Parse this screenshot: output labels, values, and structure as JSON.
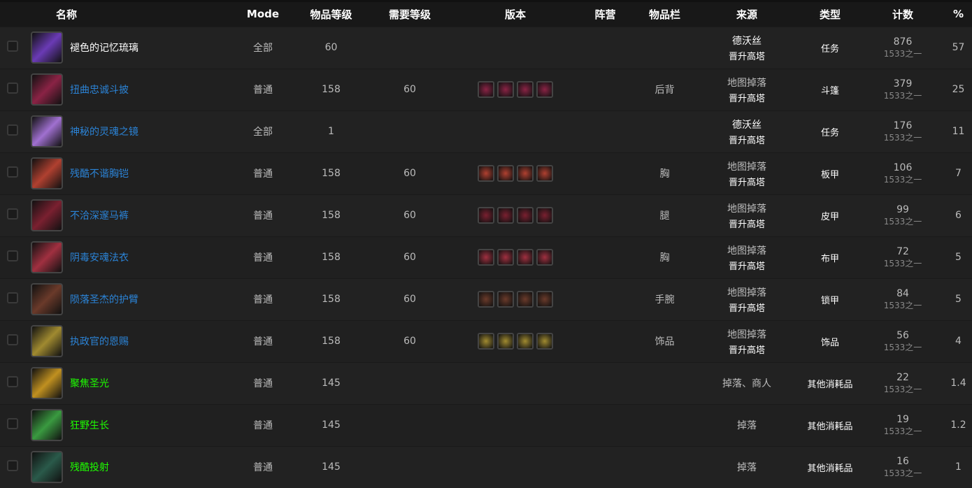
{
  "headers": [
    "名称",
    "Mode",
    "物品等级",
    "需要等级",
    "版本",
    "阵营",
    "物品栏",
    "来源",
    "类型",
    "计数",
    "%"
  ],
  "rows": [
    {
      "name": "褪色的记忆琉璃",
      "quality": "white",
      "icon": "purple-crystal-icon",
      "color": "#6a3bb5",
      "mode": "全部",
      "ilvl": "60",
      "req": "",
      "versions": 0,
      "slot": "",
      "src1": "德沃丝",
      "src1_bold": true,
      "src2": "晋升高塔",
      "type": "任务",
      "count": "876",
      "of": "1533之一",
      "pct": "57"
    },
    {
      "name": "扭曲忠诚斗披",
      "quality": "blue",
      "icon": "cloak-icon",
      "color": "#8a2345",
      "mode": "普通",
      "ilvl": "158",
      "req": "60",
      "versions": 4,
      "slot": "后背",
      "src1": "地图掉落",
      "src1_bold": false,
      "src2": "晋升高塔",
      "type": "斗篷",
      "count": "379",
      "of": "1533之一",
      "pct": "25"
    },
    {
      "name": "神秘的灵魂之镜",
      "quality": "blue",
      "icon": "soul-mirror-icon",
      "color": "#a070d0",
      "mode": "全部",
      "ilvl": "1",
      "req": "",
      "versions": 0,
      "slot": "",
      "src1": "德沃丝",
      "src1_bold": true,
      "src2": "晋升高塔",
      "type": "任务",
      "count": "176",
      "of": "1533之一",
      "pct": "11"
    },
    {
      "name": "残酷不谐胸铠",
      "quality": "blue",
      "icon": "plate-chest-icon",
      "color": "#b04030",
      "mode": "普通",
      "ilvl": "158",
      "req": "60",
      "versions": 4,
      "slot": "胸",
      "src1": "地图掉落",
      "src1_bold": false,
      "src2": "晋升高塔",
      "type": "板甲",
      "count": "106",
      "of": "1533之一",
      "pct": "7"
    },
    {
      "name": "不洽深邃马裤",
      "quality": "blue",
      "icon": "leather-legs-icon",
      "color": "#7a2030",
      "mode": "普通",
      "ilvl": "158",
      "req": "60",
      "versions": 4,
      "slot": "腿",
      "src1": "地图掉落",
      "src1_bold": false,
      "src2": "晋升高塔",
      "type": "皮甲",
      "count": "99",
      "of": "1533之一",
      "pct": "6"
    },
    {
      "name": "阴毒安魂法衣",
      "quality": "blue",
      "icon": "cloth-robe-icon",
      "color": "#a03040",
      "mode": "普通",
      "ilvl": "158",
      "req": "60",
      "versions": 4,
      "slot": "胸",
      "src1": "地图掉落",
      "src1_bold": false,
      "src2": "晋升高塔",
      "type": "布甲",
      "count": "72",
      "of": "1533之一",
      "pct": "5"
    },
    {
      "name": "陨落圣杰的护臂",
      "quality": "blue",
      "icon": "mail-bracers-icon",
      "color": "#6a3a2a",
      "mode": "普通",
      "ilvl": "158",
      "req": "60",
      "versions": 4,
      "slot": "手腕",
      "src1": "地图掉落",
      "src1_bold": false,
      "src2": "晋升高塔",
      "type": "锁甲",
      "count": "84",
      "of": "1533之一",
      "pct": "5"
    },
    {
      "name": "执政官的恩赐",
      "quality": "blue",
      "icon": "trinket-icon",
      "color": "#a08a30",
      "mode": "普通",
      "ilvl": "158",
      "req": "60",
      "versions": 4,
      "slot": "饰品",
      "src1": "地图掉落",
      "src1_bold": false,
      "src2": "晋升高塔",
      "type": "饰品",
      "count": "56",
      "of": "1533之一",
      "pct": "4"
    },
    {
      "name": "聚焦圣光",
      "quality": "green",
      "icon": "holy-light-icon",
      "color": "#c09020",
      "mode": "普通",
      "ilvl": "145",
      "req": "",
      "versions": 0,
      "slot": "",
      "src1": "掉落、商人",
      "src1_bold": false,
      "src2": "",
      "type": "其他消耗品",
      "count": "22",
      "of": "1533之一",
      "pct": "1.4"
    },
    {
      "name": "狂野生长",
      "quality": "green",
      "icon": "wild-growth-icon",
      "color": "#3a9a40",
      "mode": "普通",
      "ilvl": "145",
      "req": "",
      "versions": 0,
      "slot": "",
      "src1": "掉落",
      "src1_bold": false,
      "src2": "",
      "type": "其他消耗品",
      "count": "19",
      "of": "1533之一",
      "pct": "1.2"
    },
    {
      "name": "残酷投射",
      "quality": "green",
      "icon": "brutal-projection-icon",
      "color": "#2a5a4a",
      "mode": "普通",
      "ilvl": "145",
      "req": "",
      "versions": 0,
      "slot": "",
      "src1": "掉落",
      "src1_bold": false,
      "src2": "",
      "type": "其他消耗品",
      "count": "16",
      "of": "1533之一",
      "pct": "1"
    }
  ]
}
